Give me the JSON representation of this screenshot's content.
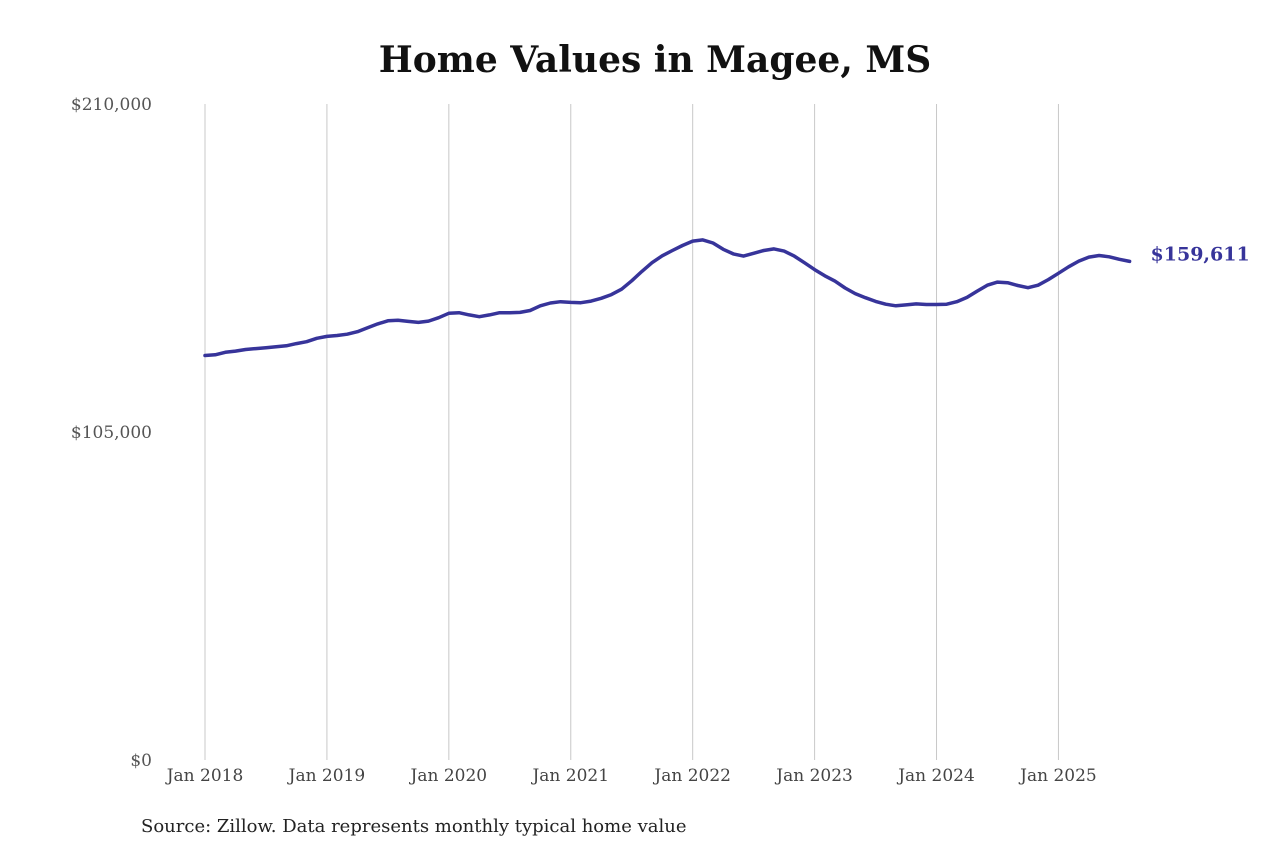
{
  "chart_data": {
    "type": "line",
    "title": "Home Values in Magee, MS",
    "xlabel": "",
    "ylabel": "",
    "ylim": [
      0,
      210000
    ],
    "y_ticks": [
      {
        "value": 0,
        "label": "$0"
      },
      {
        "value": 105000,
        "label": "$105,000"
      },
      {
        "value": 210000,
        "label": "$210,000"
      }
    ],
    "x_ticks": [
      "Jan 2018",
      "Jan 2019",
      "Jan 2020",
      "Jan 2021",
      "Jan 2022",
      "Jan 2023",
      "Jan 2024",
      "Jan 2025"
    ],
    "grid": "vertical",
    "colors": {
      "line": "#37349a",
      "grid": "#c8c8c8"
    },
    "end_label": "$159,611",
    "series": [
      {
        "start": "2018-01",
        "frequency": "monthly",
        "values": [
          129500,
          129700,
          130500,
          130900,
          131400,
          131700,
          132000,
          132300,
          132600,
          133300,
          133900,
          135000,
          135600,
          135900,
          136300,
          137100,
          138400,
          139600,
          140600,
          140800,
          140400,
          140100,
          140500,
          141600,
          143000,
          143200,
          142500,
          141900,
          142500,
          143200,
          143200,
          143300,
          143900,
          145400,
          146300,
          146700,
          146500,
          146400,
          146900,
          147800,
          149000,
          150700,
          153400,
          156400,
          159200,
          161400,
          163100,
          164700,
          166100,
          166500,
          165500,
          163500,
          162000,
          161300,
          162200,
          163100,
          163600,
          162900,
          161300,
          159200,
          157000,
          155000,
          153300,
          151100,
          149300,
          148000,
          146800,
          145900,
          145400,
          145700,
          146000,
          145800,
          145800,
          145900,
          146700,
          148100,
          150100,
          152000,
          153000,
          152800,
          151900,
          151200,
          152000,
          153800,
          155800,
          157900,
          159700,
          161000,
          161500,
          161100,
          160300,
          159611
        ]
      }
    ]
  },
  "footer": {
    "source": "Source: Zillow. Data represents monthly typical home value"
  }
}
